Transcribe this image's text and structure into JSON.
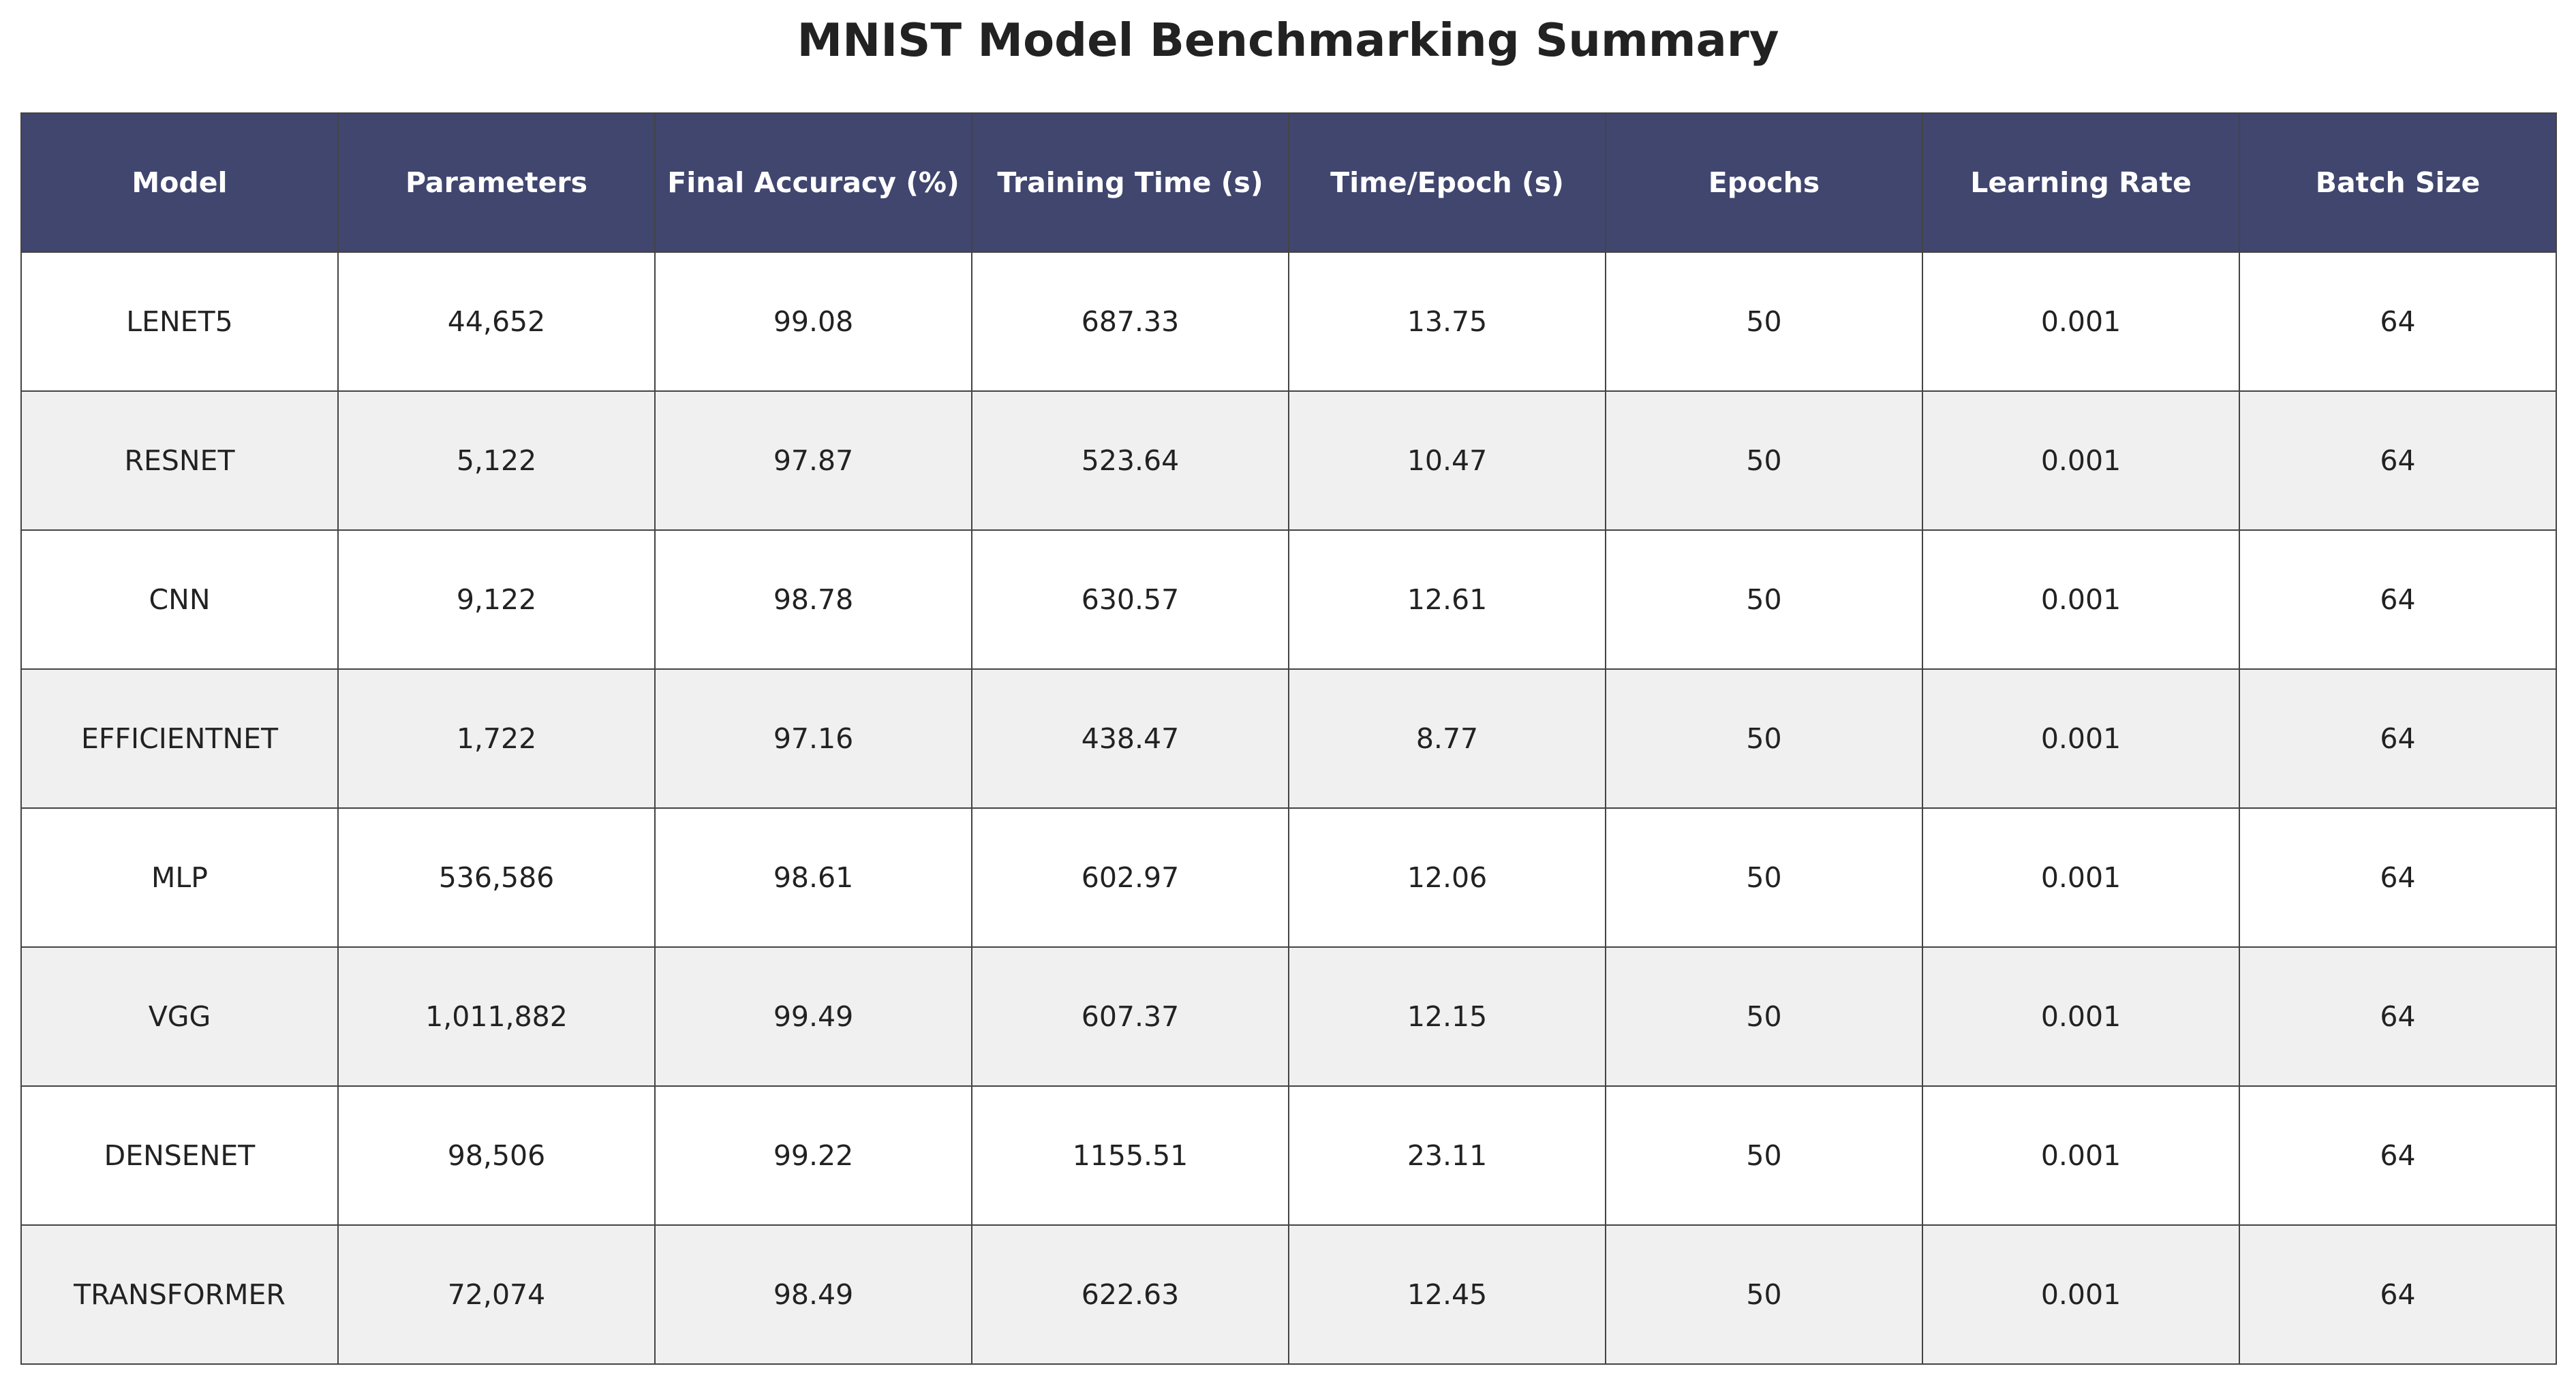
{
  "title": "MNIST Model Benchmarking Summary",
  "colors": {
    "header_bg": "#40466e",
    "header_text": "#ffffff",
    "row_odd": "#ffffff",
    "row_even": "#f0f0f0",
    "border": "#444444"
  },
  "chart_data": {
    "type": "table",
    "title": "MNIST Model Benchmarking Summary",
    "columns": [
      "Model",
      "Parameters",
      "Final Accuracy (%)",
      "Training Time (s)",
      "Time/Epoch (s)",
      "Epochs",
      "Learning Rate",
      "Batch Size"
    ],
    "rows": [
      [
        "LENET5",
        "44,652",
        "99.08",
        "687.33",
        "13.75",
        "50",
        "0.001",
        "64"
      ],
      [
        "RESNET",
        "5,122",
        "97.87",
        "523.64",
        "10.47",
        "50",
        "0.001",
        "64"
      ],
      [
        "CNN",
        "9,122",
        "98.78",
        "630.57",
        "12.61",
        "50",
        "0.001",
        "64"
      ],
      [
        "EFFICIENTNET",
        "1,722",
        "97.16",
        "438.47",
        "8.77",
        "50",
        "0.001",
        "64"
      ],
      [
        "MLP",
        "536,586",
        "98.61",
        "602.97",
        "12.06",
        "50",
        "0.001",
        "64"
      ],
      [
        "VGG",
        "1,011,882",
        "99.49",
        "607.37",
        "12.15",
        "50",
        "0.001",
        "64"
      ],
      [
        "DENSENET",
        "98,506",
        "99.22",
        "1155.51",
        "23.11",
        "50",
        "0.001",
        "64"
      ],
      [
        "TRANSFORMER",
        "72,074",
        "98.49",
        "622.63",
        "12.45",
        "50",
        "0.001",
        "64"
      ]
    ]
  }
}
